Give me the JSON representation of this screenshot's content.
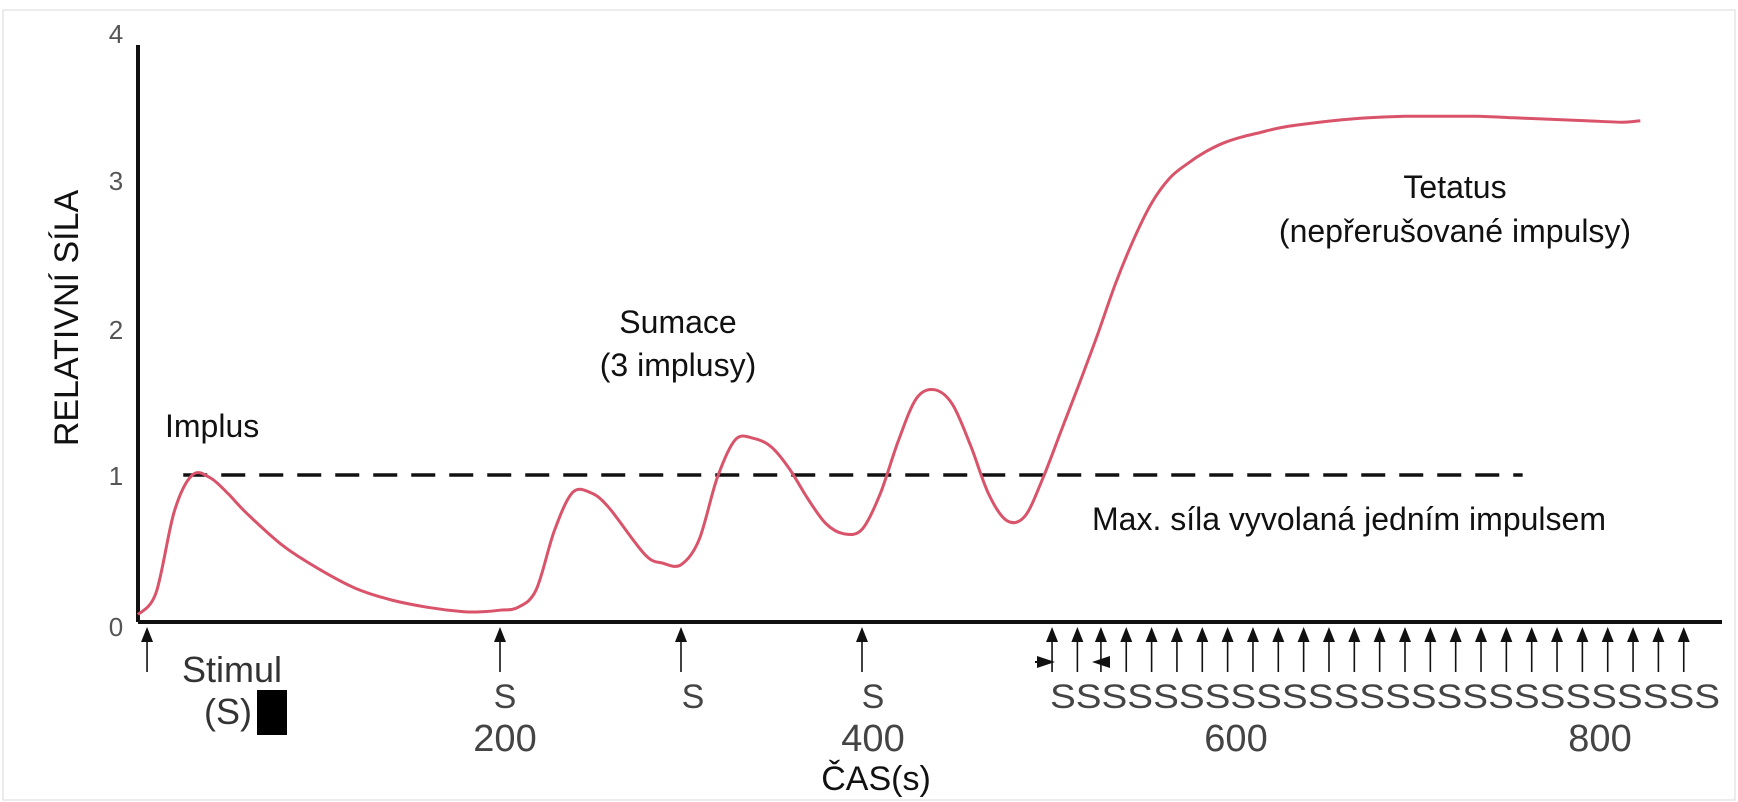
{
  "chart_data": {
    "type": "line",
    "title": "",
    "ylabel": "RELATIVNÍ SÍLA",
    "xlabel": "ČAS(s)",
    "ylim": [
      0,
      4
    ],
    "xlim": [
      0,
      860
    ],
    "yticks": [
      "0",
      "1",
      "2",
      "3",
      "4"
    ],
    "xticks": [
      "200",
      "400",
      "600",
      "800"
    ],
    "grid": false,
    "series": [
      {
        "color": "#d9536a",
        "x": [
          0,
          10,
          20,
          30,
          40,
          50,
          60,
          80,
          100,
          120,
          140,
          160,
          180,
          190,
          200,
          210,
          220,
          230,
          240,
          250,
          260,
          280,
          290,
          300,
          310,
          320,
          330,
          340,
          350,
          360,
          370,
          380,
          390,
          400,
          410,
          420,
          430,
          440,
          450,
          460,
          470,
          480,
          490,
          500,
          510,
          520,
          530,
          540,
          550,
          560,
          570,
          580,
          590,
          600,
          610,
          620,
          630,
          640,
          660,
          680,
          700,
          720,
          740,
          760,
          780,
          800,
          820,
          830
        ],
        "y": [
          0.05,
          0.2,
          0.75,
          1.0,
          0.98,
          0.87,
          0.74,
          0.52,
          0.36,
          0.23,
          0.15,
          0.1,
          0.07,
          0.07,
          0.08,
          0.1,
          0.22,
          0.62,
          0.88,
          0.88,
          0.78,
          0.46,
          0.4,
          0.39,
          0.56,
          0.98,
          1.24,
          1.25,
          1.19,
          1.04,
          0.84,
          0.67,
          0.6,
          0.63,
          0.87,
          1.23,
          1.52,
          1.58,
          1.48,
          1.2,
          0.87,
          0.69,
          0.72,
          0.98,
          1.3,
          1.62,
          1.95,
          2.3,
          2.6,
          2.85,
          3.02,
          3.12,
          3.2,
          3.26,
          3.3,
          3.33,
          3.36,
          3.38,
          3.41,
          3.43,
          3.44,
          3.44,
          3.44,
          3.43,
          3.42,
          3.41,
          3.4,
          3.41
        ]
      }
    ],
    "threshold": {
      "y": 1.0,
      "x_from": 25,
      "x_to": 765,
      "style": "dashed"
    },
    "stimuli": {
      "single": [
        5,
        200,
        300,
        400
      ],
      "tetanus": [
        505,
        519,
        532,
        546,
        560,
        574,
        588,
        602,
        616,
        630,
        644,
        658,
        672,
        686,
        700,
        714,
        728,
        742,
        756,
        770,
        784,
        798,
        812,
        826,
        840,
        854
      ]
    },
    "annotations": {
      "impuls": "Implus",
      "sumace_1": "Sumace",
      "sumace_2": "(3 implusy)",
      "tetanus_1": "Tetatus",
      "tetanus_2": "(nepřerušované impulsy)",
      "threshold": "Max. síla vyvolaná jedním impulsem",
      "stimul_1": "Stimul",
      "stimul_2": "(S)",
      "s_single": "S",
      "s_tetanus": "SSSSSSSSSSSSSSSSSSSSSSSSSS"
    }
  }
}
